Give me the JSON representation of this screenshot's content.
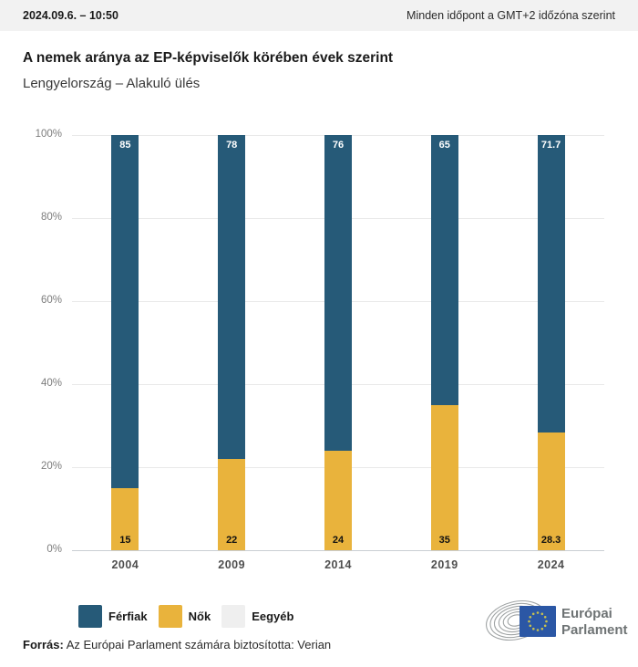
{
  "header": {
    "datetime": "2024.09.6. – 10:50",
    "timezone_note": "Minden időpont a GMT+2 időzóna szerint"
  },
  "title": "A nemek aránya az EP-képviselők körében évek szerint",
  "subtitle": "Lengyelország – Alakuló ülés",
  "chart_data": {
    "type": "bar",
    "stacked": true,
    "categories": [
      "2004",
      "2009",
      "2014",
      "2019",
      "2024"
    ],
    "series": [
      {
        "name": "Férfiak",
        "color": "#265a78",
        "values": [
          85,
          78,
          76,
          65,
          71.7
        ],
        "label_position": "top",
        "label_color": "#ffffff"
      },
      {
        "name": "Nők",
        "color": "#e9b33c",
        "values": [
          15,
          22,
          24,
          35,
          28.3
        ],
        "label_position": "bottom",
        "label_color": "#111111"
      },
      {
        "name": "Eegyéb",
        "color": "#efefef",
        "values": [
          0,
          0,
          0,
          0,
          0
        ],
        "label_position": "none",
        "label_color": "#111111"
      }
    ],
    "ylim": [
      0,
      100
    ],
    "yticks": [
      0,
      20,
      40,
      60,
      80,
      100
    ],
    "ytick_suffix": "%",
    "grid": true,
    "legend_position": "bottom"
  },
  "footer": {
    "source_label": "Forrás:",
    "source_text": " Az Európai Parlament számára biztosította: Verian"
  },
  "logo": {
    "line1": "Európai",
    "line2": "Parlament"
  }
}
